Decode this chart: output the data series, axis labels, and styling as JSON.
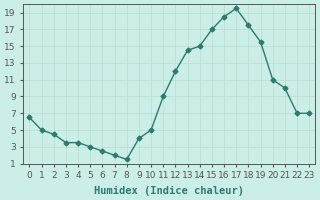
{
  "x": [
    0,
    1,
    2,
    3,
    4,
    5,
    6,
    7,
    8,
    9,
    10,
    11,
    12,
    13,
    14,
    15,
    16,
    17,
    18,
    19,
    20,
    21,
    22,
    23
  ],
  "y": [
    6.5,
    5.0,
    4.5,
    3.5,
    3.5,
    3.0,
    2.5,
    2.0,
    1.5,
    4.0,
    5.0,
    9.0,
    12.0,
    14.5,
    15.0,
    17.0,
    18.5,
    19.5,
    17.5,
    15.5,
    11.0,
    10.0,
    7.0,
    7.0
  ],
  "xlabel": "Humidex (Indice chaleur)",
  "ylabel": "",
  "xlim": [
    -0.5,
    23.5
  ],
  "ylim": [
    1,
    20
  ],
  "yticks": [
    1,
    3,
    5,
    7,
    9,
    11,
    13,
    15,
    17,
    19
  ],
  "xticks": [
    0,
    1,
    2,
    3,
    4,
    5,
    6,
    7,
    8,
    9,
    10,
    11,
    12,
    13,
    14,
    15,
    16,
    17,
    18,
    19,
    20,
    21,
    22,
    23
  ],
  "line_color": "#2d7a6e",
  "marker": "D",
  "marker_size": 2.5,
  "bg_color": "#cceee8",
  "grid_color": "#bbddcc",
  "axis_color": "#555555",
  "xlabel_fontsize": 7.5,
  "tick_fontsize": 6.5
}
